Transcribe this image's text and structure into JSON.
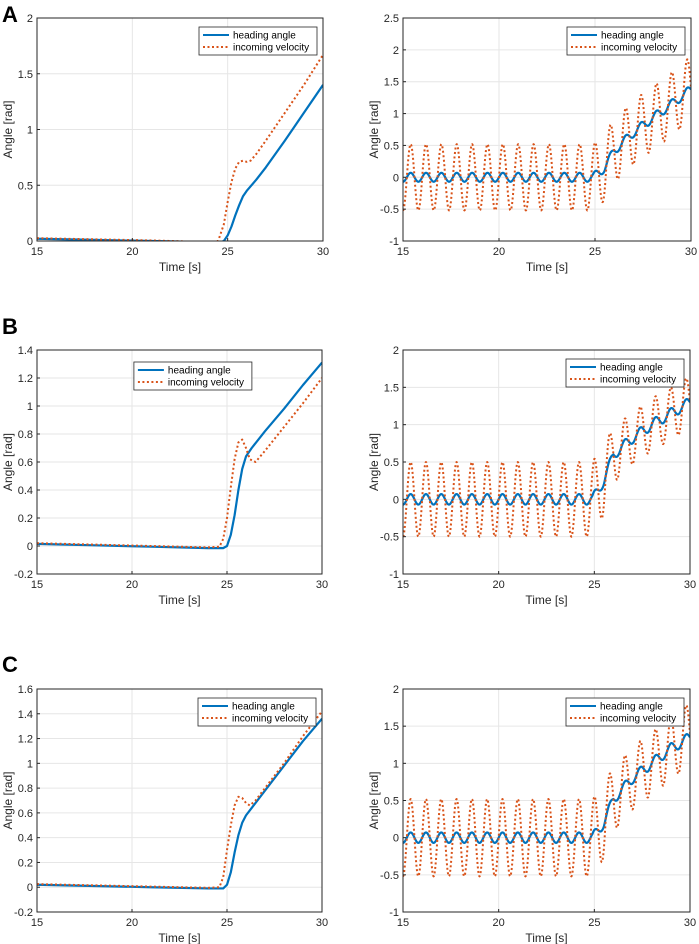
{
  "figure": {
    "panel_labels": [
      "A",
      "B",
      "C"
    ]
  },
  "colors": {
    "heading": "#0072BD",
    "velocity": "#D95319",
    "grid": "#e6e6e6",
    "axis": "#262626"
  },
  "chart_data": [
    {
      "id": "A-left",
      "type": "line",
      "title": "",
      "xlabel": "Time [s]",
      "ylabel": "Angle [rad]",
      "xlim": [
        15,
        30
      ],
      "ylim": [
        0,
        2
      ],
      "xticks": [
        15,
        20,
        25,
        30
      ],
      "xtick_labels": [
        "15",
        "20",
        "25",
        "30"
      ],
      "yticks": [
        0,
        0.5,
        1,
        1.5,
        2
      ],
      "ytick_labels": [
        "0",
        "0.5",
        "1",
        "1.5",
        "2"
      ],
      "legend": "top-right",
      "grid": true,
      "series": [
        {
          "name": "heading angle",
          "style": "solid",
          "x": [
            15,
            18,
            21,
            24,
            24.6,
            24.8,
            25.0,
            25.2,
            25.4,
            25.6,
            25.8,
            26.0,
            26.5,
            27,
            28,
            29,
            30
          ],
          "y": [
            0.02,
            0.01,
            0.0,
            -0.01,
            -0.01,
            0.0,
            0.05,
            0.13,
            0.23,
            0.32,
            0.4,
            0.45,
            0.55,
            0.66,
            0.9,
            1.15,
            1.4
          ]
        },
        {
          "name": "incoming velocity",
          "style": "dotted",
          "x": [
            15,
            18,
            21,
            24,
            24.5,
            24.8,
            25.0,
            25.2,
            25.4,
            25.6,
            25.8,
            26.0,
            26.2,
            26.5,
            27,
            28,
            29,
            30
          ],
          "y": [
            0.025,
            0.015,
            0.005,
            -0.01,
            0.0,
            0.15,
            0.35,
            0.53,
            0.65,
            0.71,
            0.72,
            0.71,
            0.72,
            0.78,
            0.9,
            1.15,
            1.4,
            1.67
          ]
        }
      ]
    },
    {
      "id": "A-right",
      "type": "line",
      "title": "",
      "xlabel": "Time [s]",
      "ylabel": "Angle [rad]",
      "xlim": [
        15,
        30
      ],
      "ylim": [
        -1,
        2.5
      ],
      "xticks": [
        15,
        20,
        25,
        30
      ],
      "xtick_labels": [
        "15",
        "20",
        "25",
        "30"
      ],
      "yticks": [
        -1,
        -0.5,
        0,
        0.5,
        1,
        1.5,
        2,
        2.5
      ],
      "ytick_labels": [
        "-1",
        "-0.5",
        "0",
        "0.5",
        "1",
        "1.5",
        "2",
        "2.5"
      ],
      "legend": "top-right",
      "grid": true,
      "oscillation_period_s": 0.8,
      "oscillation_start_s": 15.2,
      "transition_time_s": 25,
      "series": [
        {
          "name": "heading angle",
          "style": "solid",
          "osc_amplitude": 0.07,
          "trend_x": [
            15,
            24.9,
            25.5,
            26,
            27,
            28,
            29,
            30
          ],
          "trend_y": [
            0.0,
            0.0,
            0.15,
            0.42,
            0.7,
            0.93,
            1.15,
            1.38
          ]
        },
        {
          "name": "incoming velocity",
          "style": "dotted",
          "osc_amplitude": 0.52,
          "osc_amplitude_late": 0.5,
          "trend_x": [
            15,
            24.9,
            25.5,
            26,
            27,
            28,
            29,
            30
          ],
          "trend_y": [
            0.0,
            0.0,
            0.15,
            0.42,
            0.7,
            0.93,
            1.15,
            1.4
          ]
        }
      ]
    },
    {
      "id": "B-left",
      "type": "line",
      "title": "",
      "xlabel": "Time [s]",
      "ylabel": "Angle [rad]",
      "xlim": [
        15,
        30
      ],
      "ylim": [
        -0.2,
        1.4
      ],
      "xticks": [
        15,
        20,
        25,
        30
      ],
      "xtick_labels": [
        "15",
        "20",
        "25",
        "30"
      ],
      "yticks": [
        -0.2,
        0,
        0.2,
        0.4,
        0.6,
        0.8,
        1,
        1.2,
        1.4
      ],
      "ytick_labels": [
        "-0.2",
        "0",
        "0.2",
        "0.4",
        "0.6",
        "0.8",
        "1",
        "1.2",
        "1.4"
      ],
      "legend": "top-center",
      "grid": true,
      "series": [
        {
          "name": "heading angle",
          "style": "solid",
          "x": [
            15,
            18,
            21,
            24,
            24.8,
            25.0,
            25.2,
            25.4,
            25.6,
            25.8,
            26.0,
            26.3,
            27,
            28,
            29,
            30
          ],
          "y": [
            0.015,
            0.005,
            -0.005,
            -0.015,
            -0.015,
            0.0,
            0.08,
            0.22,
            0.4,
            0.55,
            0.64,
            0.7,
            0.82,
            0.98,
            1.15,
            1.31
          ]
        },
        {
          "name": "incoming velocity",
          "style": "dotted",
          "x": [
            15,
            18,
            21,
            24,
            24.6,
            24.8,
            25.0,
            25.2,
            25.4,
            25.6,
            25.8,
            26.0,
            26.2,
            26.5,
            27,
            28,
            29,
            30
          ],
          "y": [
            0.02,
            0.01,
            0.0,
            -0.01,
            -0.005,
            0.05,
            0.2,
            0.42,
            0.62,
            0.74,
            0.76,
            0.7,
            0.62,
            0.6,
            0.68,
            0.85,
            1.02,
            1.2
          ]
        }
      ]
    },
    {
      "id": "B-right",
      "type": "line",
      "title": "",
      "xlabel": "Time [s]",
      "ylabel": "Angle [rad]",
      "xlim": [
        15,
        30
      ],
      "ylim": [
        -1,
        2
      ],
      "xticks": [
        15,
        20,
        25,
        30
      ],
      "xtick_labels": [
        "15",
        "20",
        "25",
        "30"
      ],
      "yticks": [
        -1,
        -0.5,
        0,
        0.5,
        1,
        1.5,
        2
      ],
      "ytick_labels": [
        "-1",
        "-0.5",
        "0",
        "0.5",
        "1",
        "1.5",
        "2"
      ],
      "legend": "top-right",
      "grid": true,
      "oscillation_period_s": 0.8,
      "oscillation_start_s": 15.2,
      "transition_time_s": 25,
      "series": [
        {
          "name": "heading angle",
          "style": "solid",
          "osc_amplitude": 0.07,
          "trend_x": [
            15,
            24.9,
            25.5,
            26,
            27,
            28,
            29,
            30
          ],
          "trend_y": [
            0.0,
            0.0,
            0.25,
            0.6,
            0.82,
            1.0,
            1.15,
            1.3
          ]
        },
        {
          "name": "incoming velocity",
          "style": "dotted",
          "osc_amplitude": 0.5,
          "osc_amplitude_late": 0.35,
          "trend_x": [
            15,
            24.9,
            25.5,
            26,
            27,
            28,
            29,
            30
          ],
          "trend_y": [
            0.0,
            0.0,
            0.25,
            0.6,
            0.82,
            1.0,
            1.15,
            1.3
          ]
        }
      ]
    },
    {
      "id": "C-left",
      "type": "line",
      "title": "",
      "xlabel": "Time [s]",
      "ylabel": "Angle [rad]",
      "xlim": [
        15,
        30
      ],
      "ylim": [
        -0.2,
        1.6
      ],
      "xticks": [
        15,
        20,
        25,
        30
      ],
      "xtick_labels": [
        "15",
        "20",
        "25",
        "30"
      ],
      "yticks": [
        -0.2,
        0,
        0.2,
        0.4,
        0.6,
        0.8,
        1,
        1.2,
        1.4,
        1.6
      ],
      "ytick_labels": [
        "-0.2",
        "0",
        "0.2",
        "0.4",
        "0.6",
        "0.8",
        "1",
        "1.2",
        "1.4",
        "1.6"
      ],
      "legend": "top-right",
      "grid": true,
      "series": [
        {
          "name": "heading angle",
          "style": "solid",
          "x": [
            15,
            18,
            21,
            24,
            24.8,
            25.0,
            25.2,
            25.4,
            25.6,
            25.8,
            26.0,
            26.3,
            27,
            28,
            29,
            30
          ],
          "y": [
            0.02,
            0.01,
            0.0,
            -0.01,
            -0.01,
            0.02,
            0.12,
            0.28,
            0.42,
            0.52,
            0.58,
            0.64,
            0.78,
            0.98,
            1.18,
            1.36
          ]
        },
        {
          "name": "incoming velocity",
          "style": "dotted",
          "x": [
            15,
            18,
            21,
            24,
            24.6,
            24.8,
            25.0,
            25.2,
            25.4,
            25.6,
            25.8,
            26.0,
            26.2,
            26.5,
            27,
            28,
            29,
            30
          ],
          "y": [
            0.025,
            0.015,
            0.005,
            -0.005,
            0.0,
            0.08,
            0.3,
            0.5,
            0.66,
            0.73,
            0.72,
            0.68,
            0.66,
            0.7,
            0.8,
            1.0,
            1.22,
            1.42
          ]
        }
      ]
    },
    {
      "id": "C-right",
      "type": "line",
      "title": "",
      "xlabel": "Time [s]",
      "ylabel": "Angle [rad]",
      "xlim": [
        15,
        30
      ],
      "ylim": [
        -1,
        2
      ],
      "xticks": [
        15,
        20,
        25,
        30
      ],
      "xtick_labels": [
        "15",
        "20",
        "25",
        "30"
      ],
      "yticks": [
        -1,
        -0.5,
        0,
        0.5,
        1,
        1.5,
        2
      ],
      "ytick_labels": [
        "-1",
        "-0.5",
        "0",
        "0.5",
        "1",
        "1.5",
        "2"
      ],
      "legend": "top-right",
      "grid": true,
      "oscillation_period_s": 0.8,
      "oscillation_start_s": 15.2,
      "transition_time_s": 25,
      "series": [
        {
          "name": "heading angle",
          "style": "solid",
          "osc_amplitude": 0.07,
          "trend_x": [
            15,
            24.9,
            25.5,
            26,
            27,
            28,
            29,
            30
          ],
          "trend_y": [
            0.0,
            0.0,
            0.2,
            0.52,
            0.8,
            1.0,
            1.2,
            1.35
          ]
        },
        {
          "name": "incoming velocity",
          "style": "dotted",
          "osc_amplitude": 0.52,
          "osc_amplitude_late": 0.42,
          "trend_x": [
            15,
            24.9,
            25.5,
            26,
            27,
            28,
            29,
            30
          ],
          "trend_y": [
            0.0,
            0.0,
            0.2,
            0.52,
            0.8,
            1.0,
            1.2,
            1.4
          ]
        }
      ]
    }
  ]
}
